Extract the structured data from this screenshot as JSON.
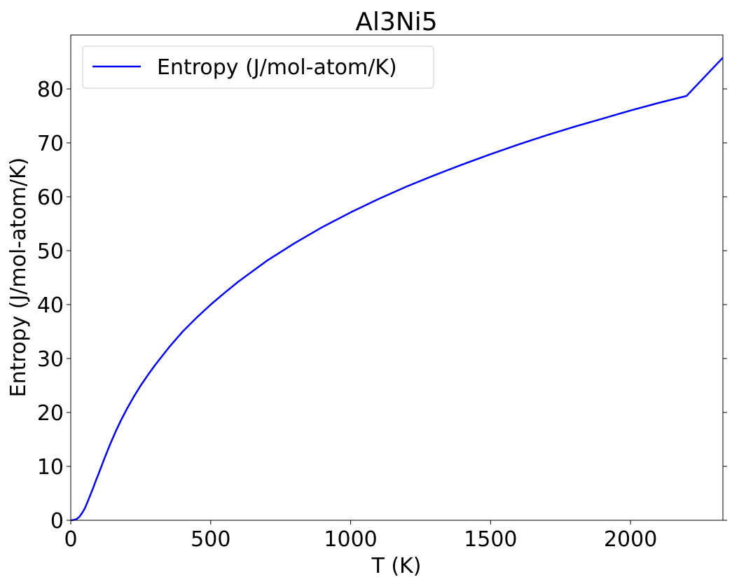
{
  "chart_data": {
    "type": "line",
    "title": "Al3Ni5",
    "xlabel": "T (K)",
    "ylabel": "Entropy (J/mol-atom/K)",
    "xlim": [
      0,
      2330
    ],
    "ylim": [
      0,
      90
    ],
    "xticks": [
      0,
      500,
      1000,
      1500,
      2000
    ],
    "yticks": [
      0,
      10,
      20,
      30,
      40,
      50,
      60,
      70,
      80
    ],
    "grid": false,
    "legend": {
      "placement": "upper-left"
    },
    "series": [
      {
        "name": "Entropy (J/mol-atom/K)",
        "color": "#0000ff",
        "x": [
          0,
          10,
          20,
          30,
          40,
          50,
          60,
          70,
          80,
          90,
          100,
          120,
          140,
          160,
          180,
          200,
          225,
          250,
          275,
          300,
          350,
          400,
          450,
          500,
          550,
          600,
          700,
          800,
          900,
          1000,
          1100,
          1200,
          1300,
          1400,
          1500,
          1600,
          1700,
          1800,
          1900,
          2000,
          2100,
          2200,
          2330
        ],
        "y": [
          0,
          0.05,
          0.2,
          0.6,
          1.3,
          2.2,
          3.4,
          4.7,
          6.0,
          7.4,
          8.7,
          11.4,
          14.0,
          16.4,
          18.6,
          20.6,
          22.9,
          25.0,
          26.9,
          28.7,
          32.0,
          35.0,
          37.6,
          40.0,
          42.2,
          44.3,
          48.1,
          51.4,
          54.4,
          57.1,
          59.6,
          61.9,
          64.0,
          66.0,
          67.9,
          69.7,
          71.4,
          73.0,
          74.5,
          76.0,
          77.4,
          78.7,
          85.8
        ]
      }
    ]
  }
}
